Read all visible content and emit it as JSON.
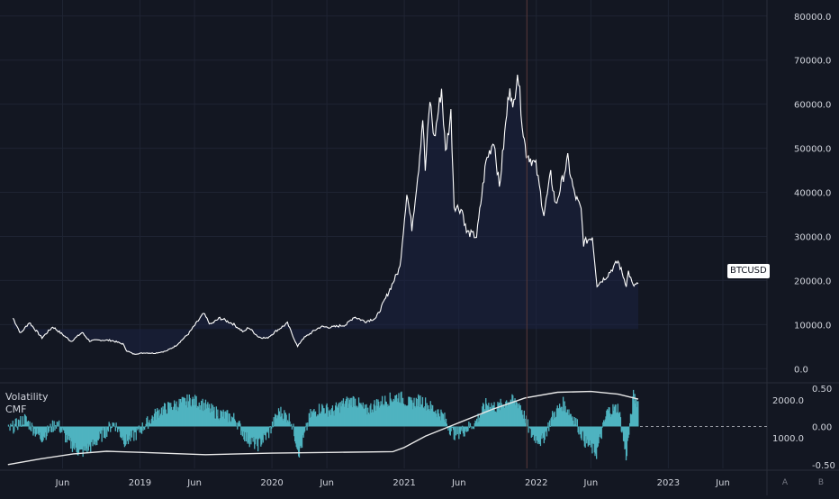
{
  "colors": {
    "background": "#131722",
    "grid": "#1f2433",
    "axis_text": "#d1d4dc",
    "price_line": "#ffffff",
    "price_fill": "#1b2242",
    "cmf_bar": "#4fb3c0",
    "volatility_line": "#e8e8e8",
    "crosshair": "#5a3a3a",
    "separator": "#2a2e39",
    "badge_bg": "#ffffff",
    "badge_text": "#131722"
  },
  "symbol_badge": "BTCUSD",
  "indicators": {
    "names": [
      "Volatility",
      "CMF"
    ]
  },
  "corner_buttons": [
    "A",
    "B"
  ],
  "chart_data": [
    {
      "type": "line",
      "name": "BTCUSD",
      "y_scale_ticks": [
        "0.0",
        "10000.0",
        "20000.0",
        "30000.0",
        "40000.0",
        "50000.0",
        "60000.0",
        "70000.0",
        "80000.0"
      ],
      "ylim": [
        -3000,
        82000
      ],
      "x_tick_labels": [
        "Jun",
        "2019",
        "Jun",
        "2020",
        "Jun",
        "2021",
        "Jun",
        "2022",
        "Jun",
        "2023",
        "Jun"
      ],
      "x_tick_dates": [
        "2018-06-01",
        "2019-01-01",
        "2019-06-01",
        "2020-01-01",
        "2020-06-01",
        "2021-01-01",
        "2021-06-01",
        "2022-01-01",
        "2022-06-01",
        "2023-01-01",
        "2023-06-01"
      ],
      "last_value_label": "BTCUSD",
      "points": [
        [
          "2018-01-15",
          11500
        ],
        [
          "2018-02-05",
          8000
        ],
        [
          "2018-03-01",
          10500
        ],
        [
          "2018-04-05",
          7000
        ],
        [
          "2018-05-05",
          9500
        ],
        [
          "2018-06-25",
          6200
        ],
        [
          "2018-07-25",
          8200
        ],
        [
          "2018-08-15",
          6300
        ],
        [
          "2018-09-15",
          6500
        ],
        [
          "2018-10-15",
          6400
        ],
        [
          "2018-11-15",
          5600
        ],
        [
          "2018-11-25",
          4100
        ],
        [
          "2018-12-15",
          3300
        ],
        [
          "2019-01-15",
          3600
        ],
        [
          "2019-02-10",
          3500
        ],
        [
          "2019-03-15",
          4000
        ],
        [
          "2019-04-10",
          5200
        ],
        [
          "2019-05-15",
          7900
        ],
        [
          "2019-06-26",
          12500
        ],
        [
          "2019-07-15",
          10000
        ],
        [
          "2019-08-10",
          11500
        ],
        [
          "2019-09-15",
          10200
        ],
        [
          "2019-10-15",
          8300
        ],
        [
          "2019-10-28",
          9400
        ],
        [
          "2019-11-25",
          7200
        ],
        [
          "2019-12-18",
          6900
        ],
        [
          "2020-01-15",
          8700
        ],
        [
          "2020-02-13",
          10300
        ],
        [
          "2020-03-12",
          5000
        ],
        [
          "2020-03-25",
          6700
        ],
        [
          "2020-04-30",
          8800
        ],
        [
          "2020-05-15",
          9500
        ],
        [
          "2020-06-15",
          9400
        ],
        [
          "2020-07-25",
          10000
        ],
        [
          "2020-08-15",
          11800
        ],
        [
          "2020-09-15",
          10700
        ],
        [
          "2020-10-15",
          11500
        ],
        [
          "2020-11-05",
          15000
        ],
        [
          "2020-11-25",
          18500
        ],
        [
          "2020-12-20",
          23000
        ],
        [
          "2021-01-08",
          40000
        ],
        [
          "2021-01-22",
          32000
        ],
        [
          "2021-02-10",
          46000
        ],
        [
          "2021-02-21",
          57000
        ],
        [
          "2021-02-28",
          45000
        ],
        [
          "2021-03-13",
          61000
        ],
        [
          "2021-03-25",
          52000
        ],
        [
          "2021-04-14",
          63500
        ],
        [
          "2021-04-25",
          49000
        ],
        [
          "2021-05-10",
          58000
        ],
        [
          "2021-05-19",
          37000
        ],
        [
          "2021-06-10",
          36000
        ],
        [
          "2021-06-22",
          31000
        ],
        [
          "2021-07-20",
          30000
        ],
        [
          "2021-08-15",
          47000
        ],
        [
          "2021-09-06",
          52000
        ],
        [
          "2021-09-21",
          41000
        ],
        [
          "2021-10-20",
          65000
        ],
        [
          "2021-10-28",
          58000
        ],
        [
          "2021-11-10",
          68000
        ],
        [
          "2021-11-26",
          53500
        ],
        [
          "2021-12-04",
          49000
        ],
        [
          "2021-12-31",
          46000
        ],
        [
          "2022-01-22",
          35000
        ],
        [
          "2022-02-10",
          44000
        ],
        [
          "2022-02-24",
          37000
        ],
        [
          "2022-03-29",
          47500
        ],
        [
          "2022-04-15",
          40000
        ],
        [
          "2022-05-05",
          36000
        ],
        [
          "2022-05-12",
          28500
        ],
        [
          "2022-06-05",
          30000
        ],
        [
          "2022-06-18",
          19000
        ],
        [
          "2022-07-15",
          21000
        ],
        [
          "2022-08-15",
          24400
        ],
        [
          "2022-09-07",
          19000
        ],
        [
          "2022-09-13",
          22000
        ],
        [
          "2022-09-25",
          18800
        ],
        [
          "2022-10-10",
          19300
        ]
      ]
    },
    {
      "type": "bar",
      "name": "CMF",
      "y_scale_ticks": [
        "0.50",
        "0.00",
        "-0.50"
      ],
      "ylim": [
        -0.55,
        0.55
      ],
      "segments": [
        [
          "2018-01-01",
          -0.05
        ],
        [
          "2018-02-15",
          0.1
        ],
        [
          "2018-04-01",
          -0.15
        ],
        [
          "2018-05-15",
          0.05
        ],
        [
          "2018-06-15",
          -0.2
        ],
        [
          "2018-07-20",
          -0.35
        ],
        [
          "2018-08-20",
          -0.25
        ],
        [
          "2018-09-20",
          -0.1
        ],
        [
          "2018-10-20",
          0.05
        ],
        [
          "2018-11-20",
          -0.2
        ],
        [
          "2018-12-20",
          -0.1
        ],
        [
          "2019-01-20",
          0.05
        ],
        [
          "2019-02-20",
          0.2
        ],
        [
          "2019-03-20",
          0.25
        ],
        [
          "2019-04-20",
          0.3
        ],
        [
          "2019-05-20",
          0.35
        ],
        [
          "2019-06-20",
          0.3
        ],
        [
          "2019-07-20",
          0.2
        ],
        [
          "2019-08-20",
          0.15
        ],
        [
          "2019-09-20",
          0.1
        ],
        [
          "2019-10-20",
          -0.15
        ],
        [
          "2019-11-20",
          -0.25
        ],
        [
          "2019-12-20",
          -0.1
        ],
        [
          "2020-01-20",
          0.2
        ],
        [
          "2020-02-20",
          0.1
        ],
        [
          "2020-03-15",
          -0.35
        ],
        [
          "2020-04-15",
          0.15
        ],
        [
          "2020-05-15",
          0.25
        ],
        [
          "2020-06-15",
          0.2
        ],
        [
          "2020-07-15",
          0.3
        ],
        [
          "2020-08-15",
          0.35
        ],
        [
          "2020-09-15",
          0.2
        ],
        [
          "2020-10-15",
          0.3
        ],
        [
          "2020-11-15",
          0.35
        ],
        [
          "2020-12-15",
          0.4
        ],
        [
          "2021-01-15",
          0.3
        ],
        [
          "2021-02-15",
          0.35
        ],
        [
          "2021-03-15",
          0.25
        ],
        [
          "2021-04-15",
          0.15
        ],
        [
          "2021-05-15",
          -0.1
        ],
        [
          "2021-06-15",
          -0.05
        ],
        [
          "2021-07-15",
          0.05
        ],
        [
          "2021-08-15",
          0.3
        ],
        [
          "2021-09-15",
          0.25
        ],
        [
          "2021-10-15",
          0.35
        ],
        [
          "2021-11-15",
          0.3
        ],
        [
          "2021-12-15",
          -0.1
        ],
        [
          "2022-01-15",
          -0.2
        ],
        [
          "2022-02-15",
          0.15
        ],
        [
          "2022-03-15",
          0.3
        ],
        [
          "2022-04-15",
          0.1
        ],
        [
          "2022-05-15",
          -0.2
        ],
        [
          "2022-06-15",
          -0.35
        ],
        [
          "2022-07-15",
          0.2
        ],
        [
          "2022-08-15",
          0.25
        ],
        [
          "2022-09-05",
          -0.4
        ],
        [
          "2022-09-25",
          0.4
        ],
        [
          "2022-10-10",
          0.3
        ]
      ]
    },
    {
      "type": "line",
      "name": "Volatility",
      "y_scale_ticks": [
        "2000.0",
        "1000.0"
      ],
      "ylim": [
        200,
        2400
      ],
      "points": [
        [
          "2018-01-01",
          300
        ],
        [
          "2018-04-01",
          450
        ],
        [
          "2018-07-01",
          580
        ],
        [
          "2018-10-01",
          650
        ],
        [
          "2019-01-01",
          620
        ],
        [
          "2019-07-01",
          560
        ],
        [
          "2020-01-01",
          600
        ],
        [
          "2020-07-01",
          620
        ],
        [
          "2020-12-01",
          640
        ],
        [
          "2021-01-01",
          750
        ],
        [
          "2021-03-01",
          1050
        ],
        [
          "2021-06-01",
          1400
        ],
        [
          "2021-09-01",
          1750
        ],
        [
          "2021-12-01",
          2050
        ],
        [
          "2022-03-01",
          2200
        ],
        [
          "2022-06-01",
          2220
        ],
        [
          "2022-08-15",
          2150
        ],
        [
          "2022-10-10",
          2020
        ]
      ]
    }
  ],
  "crosshair_date": "2021-12-06"
}
